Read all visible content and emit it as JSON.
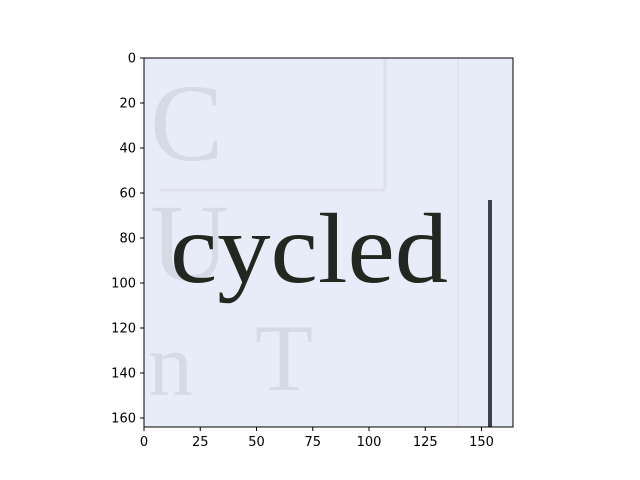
{
  "plot": {
    "x_ticks": [
      "0",
      "25",
      "50",
      "75",
      "100",
      "125",
      "150"
    ],
    "y_ticks": [
      "0",
      "20",
      "40",
      "60",
      "80",
      "100",
      "120",
      "140",
      "160"
    ],
    "x_range": [
      0,
      164
    ],
    "y_range": [
      0,
      164
    ],
    "y_inverted": true
  },
  "image": {
    "word": "cycled",
    "ghost_text": [
      "C",
      "U",
      "n",
      "T"
    ],
    "background_color": "#e8ecf8",
    "ink_color": "#22281f",
    "bar_color": "#3d3f4c"
  }
}
